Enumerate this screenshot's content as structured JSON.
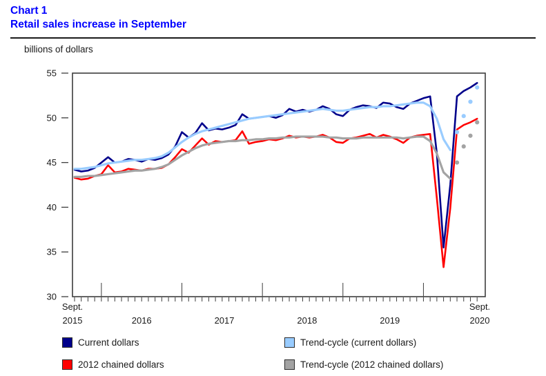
{
  "header": {
    "label": "Chart 1",
    "title": "Retail sales increase in September"
  },
  "axis_unit_label": "billions of dollars",
  "chart_data": {
    "type": "line",
    "title": "Chart 1",
    "subtitle": "Retail sales increase in September",
    "ylabel": "billions of dollars",
    "ylim": [
      30,
      55
    ],
    "y_ticks": [
      30,
      35,
      40,
      45,
      50,
      55
    ],
    "grid": false,
    "legend_position": "bottom",
    "x_unit": "month",
    "x_range": "Sept. 2015 to Sept. 2020",
    "months_total": 61,
    "x_axis": {
      "start_top": "Sept.",
      "start_bottom": "2015",
      "years": [
        "2016",
        "2017",
        "2018",
        "2019"
      ],
      "end_top": "Sept.",
      "end_bottom": "2020"
    },
    "note": "Trend-cycle lines end as dots for the last four months (June to September 2020)",
    "series": [
      {
        "name": "Current dollars",
        "color": "#00008B",
        "line_style": "solid",
        "values": [
          44.2,
          44.0,
          44.1,
          44.4,
          45.0,
          45.6,
          45.0,
          45.1,
          45.4,
          45.3,
          45.1,
          45.4,
          45.3,
          45.5,
          45.9,
          46.8,
          48.4,
          47.8,
          48.3,
          49.4,
          48.6,
          48.8,
          48.7,
          48.9,
          49.2,
          50.4,
          49.9,
          50.0,
          50.1,
          50.2,
          50.0,
          50.3,
          51.0,
          50.7,
          50.9,
          50.7,
          50.9,
          51.3,
          51.0,
          50.4,
          50.2,
          50.9,
          51.2,
          51.4,
          51.3,
          51.1,
          51.7,
          51.6,
          51.2,
          51.0,
          51.6,
          51.9,
          52.2,
          52.4,
          46.0,
          35.5,
          42.5,
          52.4,
          53.0,
          53.4,
          53.9
        ]
      },
      {
        "name": "2012 chained dollars",
        "color": "#FF0000",
        "line_style": "solid",
        "values": [
          43.3,
          43.1,
          43.2,
          43.5,
          43.7,
          44.7,
          43.9,
          44.0,
          44.3,
          44.2,
          44.1,
          44.3,
          44.3,
          44.4,
          44.8,
          45.6,
          46.5,
          46.1,
          46.9,
          47.7,
          47.0,
          47.4,
          47.3,
          47.4,
          47.5,
          48.5,
          47.1,
          47.3,
          47.4,
          47.6,
          47.5,
          47.7,
          48.0,
          47.8,
          47.9,
          47.8,
          47.9,
          48.1,
          47.8,
          47.3,
          47.2,
          47.7,
          47.8,
          48.0,
          48.2,
          47.8,
          48.1,
          47.9,
          47.6,
          47.2,
          47.8,
          48.0,
          48.1,
          48.2,
          41.0,
          33.3,
          39.9,
          48.7,
          49.2,
          49.5,
          49.9
        ]
      },
      {
        "name": "Trend-cycle (current dollars)",
        "color": "#99CCFF",
        "line_style": "solid-then-dots",
        "values": [
          44.3,
          44.3,
          44.4,
          44.5,
          44.7,
          44.9,
          45.0,
          45.1,
          45.2,
          45.3,
          45.3,
          45.4,
          45.5,
          45.7,
          46.1,
          46.7,
          47.3,
          47.8,
          48.2,
          48.5,
          48.7,
          48.9,
          49.1,
          49.3,
          49.5,
          49.7,
          49.9,
          50.0,
          50.1,
          50.2,
          50.3,
          50.4,
          50.5,
          50.6,
          50.7,
          50.8,
          50.9,
          51.0,
          50.9,
          50.8,
          50.8,
          50.9,
          51.0,
          51.1,
          51.2,
          51.2,
          51.3,
          51.3,
          51.4,
          51.5,
          51.6,
          51.7,
          51.7,
          51.3,
          49.9,
          47.6,
          46.4
        ],
        "dots": [
          48.4,
          50.2,
          51.8,
          53.4
        ]
      },
      {
        "name": "Trend-cycle (2012 chained dollars)",
        "color": "#A3A3A3",
        "line_style": "solid-then-dots",
        "values": [
          43.4,
          43.4,
          43.5,
          43.5,
          43.6,
          43.7,
          43.8,
          43.9,
          44.0,
          44.1,
          44.1,
          44.2,
          44.3,
          44.5,
          44.8,
          45.3,
          45.8,
          46.2,
          46.6,
          46.9,
          47.1,
          47.2,
          47.3,
          47.4,
          47.4,
          47.5,
          47.5,
          47.6,
          47.6,
          47.7,
          47.7,
          47.8,
          47.8,
          47.9,
          47.9,
          47.9,
          47.9,
          47.9,
          47.8,
          47.8,
          47.7,
          47.7,
          47.7,
          47.8,
          47.8,
          47.8,
          47.8,
          47.8,
          47.8,
          47.7,
          47.8,
          47.9,
          47.9,
          47.4,
          46.0,
          43.9,
          43.2
        ],
        "dots": [
          45.0,
          46.8,
          48.0,
          49.5
        ]
      }
    ]
  },
  "legend": {
    "items": [
      {
        "label": "Current dollars",
        "color": "#00008B"
      },
      {
        "label": "Trend-cycle (current dollars)",
        "color": "#99CCFF"
      },
      {
        "label": "2012 chained dollars",
        "color": "#FF0000"
      },
      {
        "label": "Trend-cycle (2012 chained dollars)",
        "color": "#A3A3A3"
      }
    ]
  }
}
